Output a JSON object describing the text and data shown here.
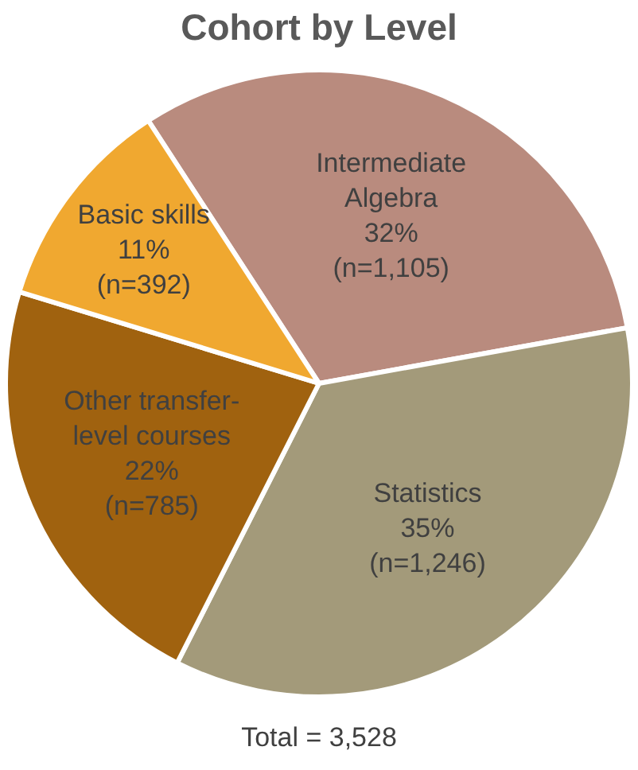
{
  "chart_data": {
    "type": "pie",
    "title": "Cohort by Level",
    "categories": [
      "Intermediate Algebra",
      "Statistics",
      "Other transfer-level courses",
      "Basic skills"
    ],
    "values": [
      1105,
      1246,
      785,
      392
    ],
    "colors": [
      "#b98b7e",
      "#a39a7a",
      "#a0620f",
      "#f0a830"
    ],
    "value_labels": [
      "32%\n(n=1,105)",
      "35%\n(n=1,246)",
      "22%\n(n=785)",
      "11%\n(n=392)"
    ],
    "annotations": [
      "Total = 3,528"
    ]
  }
}
